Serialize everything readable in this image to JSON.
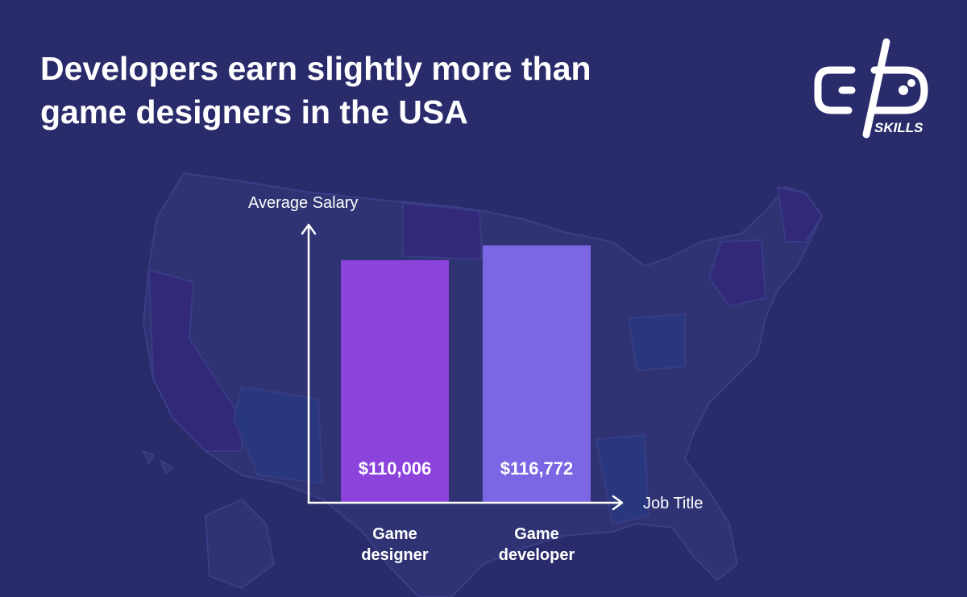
{
  "title": {
    "line1": "Developers earn slightly more than",
    "line2": "game designers in the USA"
  },
  "logo": {
    "text": "SKILLS",
    "icon": "gd-skills-logo-icon"
  },
  "colors": {
    "background": "#292b6b",
    "map_state": "#2f3373",
    "bar_designer": "#8b43dc",
    "bar_developer": "#7b66e3",
    "axis": "#ffffff"
  },
  "chart_data": {
    "type": "bar",
    "title": "Developers earn slightly more than game designers in the USA",
    "xlabel": "Job Title",
    "ylabel": "Average Salary",
    "categories": [
      [
        "Game",
        "designer"
      ],
      [
        "Game",
        "developer"
      ]
    ],
    "values": [
      110006,
      116772
    ],
    "value_labels": [
      "$110,006",
      "$116,772"
    ],
    "ylim": [
      0,
      132000
    ],
    "grid": false,
    "legend": "none"
  }
}
